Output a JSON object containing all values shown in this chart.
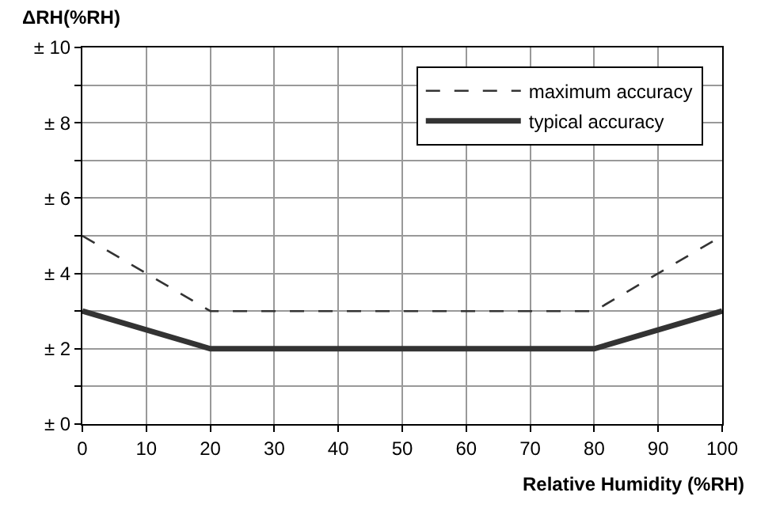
{
  "chart_data": {
    "type": "line",
    "ylabel": "ΔRH(%RH)",
    "xlabel": "Relative Humidity (%RH)",
    "x": [
      0,
      20,
      80,
      100
    ],
    "series": [
      {
        "name": "maximum accuracy",
        "color": "#333333",
        "values": [
          5,
          3,
          3,
          5
        ],
        "line_style": "dashed"
      },
      {
        "name": "typical accuracy",
        "color": "#333333",
        "values": [
          3,
          2,
          2,
          3
        ],
        "line_style": "solid"
      }
    ],
    "xlim": [
      0,
      100
    ],
    "xticks": [
      0,
      10,
      20,
      30,
      40,
      50,
      60,
      70,
      80,
      90,
      100
    ],
    "ylim": [
      0,
      10
    ],
    "yticks": [
      {
        "value": 0,
        "label": "± 0"
      },
      {
        "value": 1,
        "label": null
      },
      {
        "value": 2,
        "label": "± 2"
      },
      {
        "value": 3,
        "label": null
      },
      {
        "value": 4,
        "label": "± 4"
      },
      {
        "value": 5,
        "label": null
      },
      {
        "value": 6,
        "label": "± 6"
      },
      {
        "value": 7,
        "label": null
      },
      {
        "value": 8,
        "label": "± 8"
      },
      {
        "value": 9,
        "label": null
      },
      {
        "value": 10,
        "label": "± 10"
      }
    ],
    "grid": true,
    "legend": "top right",
    "marker": "none"
  }
}
